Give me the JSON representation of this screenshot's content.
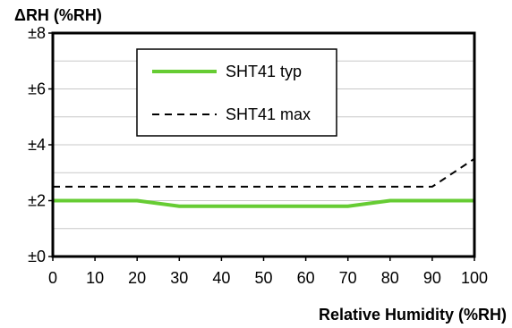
{
  "chart_data": {
    "type": "line",
    "ylabel": "ΔRH (%RH)",
    "xlabel": "Relative Humidity (%RH)",
    "xlim": [
      0,
      100
    ],
    "ylim": [
      0,
      8
    ],
    "x_ticks": [
      0,
      10,
      20,
      30,
      40,
      50,
      60,
      70,
      80,
      90,
      100
    ],
    "x_tick_labels": [
      "0",
      "10",
      "20",
      "30",
      "40",
      "50",
      "60",
      "70",
      "80",
      "90",
      "100"
    ],
    "y_ticks": [
      0,
      2,
      4,
      6,
      8
    ],
    "y_tick_labels": [
      "±0",
      "±2",
      "±4",
      "±6",
      "±8"
    ],
    "grid": true,
    "legend_position": "top-left",
    "series": [
      {
        "name": "SHT41 typ",
        "style": "solid",
        "color": "#66cc33",
        "x": [
          0,
          20,
          30,
          70,
          80,
          100
        ],
        "y": [
          2.0,
          2.0,
          1.8,
          1.8,
          2.0,
          2.0
        ]
      },
      {
        "name": "SHT41 max",
        "style": "dashed",
        "color": "#000000",
        "x": [
          0,
          90,
          100
        ],
        "y": [
          2.5,
          2.5,
          3.5
        ]
      }
    ]
  }
}
